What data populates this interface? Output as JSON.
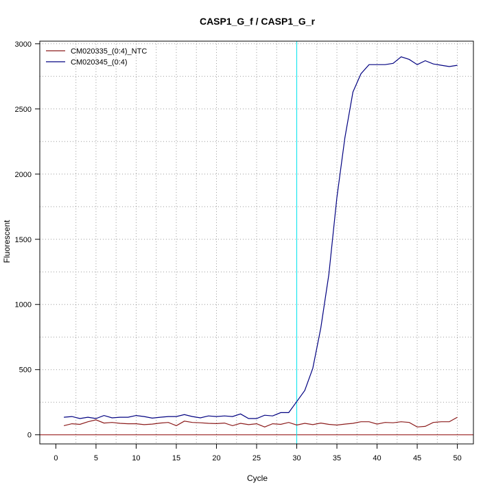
{
  "chart_data": {
    "type": "line",
    "title": "CASP1_G_f / CASP1_G_r",
    "xlabel": "Cycle",
    "ylabel": "Fluorescent",
    "xlim": [
      -2,
      52
    ],
    "ylim": [
      -70,
      3020
    ],
    "xticks": [
      0,
      5,
      10,
      15,
      20,
      25,
      30,
      35,
      40,
      45,
      50
    ],
    "yticks": [
      0,
      500,
      1000,
      1500,
      2000,
      2500,
      3000
    ],
    "grid": true,
    "legend_position": "top-left",
    "threshold_x": 30,
    "threshold_color": "#00e5ee",
    "baseline_y": 0,
    "baseline_color": "#8b0000",
    "x": [
      1,
      2,
      3,
      4,
      5,
      6,
      7,
      8,
      9,
      10,
      11,
      12,
      13,
      14,
      15,
      16,
      17,
      18,
      19,
      20,
      21,
      22,
      23,
      24,
      25,
      26,
      27,
      28,
      29,
      30,
      31,
      32,
      33,
      34,
      35,
      36,
      37,
      38,
      39,
      40,
      41,
      42,
      43,
      44,
      45,
      46,
      47,
      48,
      49,
      50
    ],
    "series": [
      {
        "name": "CM020335_(0:4)_NTC",
        "color": "#8b1a1a",
        "values": [
          70,
          85,
          80,
          100,
          115,
          90,
          95,
          88,
          85,
          85,
          78,
          82,
          90,
          95,
          70,
          105,
          95,
          92,
          88,
          86,
          90,
          70,
          88,
          78,
          85,
          60,
          85,
          80,
          95,
          75,
          88,
          78,
          90,
          80,
          75,
          82,
          88,
          100,
          100,
          82,
          95,
          92,
          100,
          95,
          60,
          65,
          95,
          100,
          100,
          135
        ]
      },
      {
        "name": "CM020345_(0:4)",
        "color": "#000080",
        "values": [
          135,
          140,
          125,
          135,
          125,
          148,
          130,
          135,
          135,
          148,
          140,
          128,
          135,
          140,
          140,
          155,
          140,
          130,
          145,
          140,
          145,
          140,
          160,
          125,
          125,
          150,
          145,
          170,
          170,
          255,
          340,
          510,
          820,
          1230,
          1820,
          2280,
          2630,
          2770,
          2840,
          2840,
          2840,
          2850,
          2900,
          2880,
          2840,
          2870,
          2845,
          2835,
          2825,
          2835
        ]
      }
    ]
  }
}
